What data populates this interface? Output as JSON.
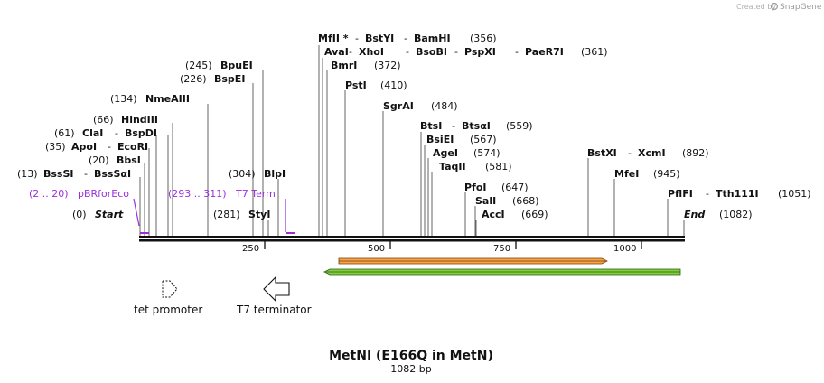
{
  "credit": {
    "prefix": "Created by",
    "brand": "SnapGene"
  },
  "sequence": {
    "title": "MetNI (E166Q in MetN)",
    "length_label": "1082 bp",
    "length": 1082
  },
  "ends": {
    "start": {
      "label": "Start",
      "pos": "(0)"
    },
    "end": {
      "label": "End",
      "pos": "(1082)"
    }
  },
  "ticks": [
    "250",
    "500",
    "750",
    "1000"
  ],
  "primers": [
    {
      "range": "(2 .. 20)",
      "name": "pBRforEco"
    },
    {
      "range": "(293 .. 311)",
      "name": "T7 Term"
    }
  ],
  "sites": [
    {
      "pos": "(13)",
      "names": [
        "BssSI",
        "BssSαI"
      ]
    },
    {
      "pos": "(20)",
      "names": [
        "BbsI"
      ]
    },
    {
      "pos": "(35)",
      "names": [
        "ApoI",
        "EcoRI"
      ]
    },
    {
      "pos": "(61)",
      "names": [
        "ClaI",
        "BspDI"
      ]
    },
    {
      "pos": "(66)",
      "names": [
        "HindIII"
      ]
    },
    {
      "pos": "(134)",
      "names": [
        "NmeAIII"
      ]
    },
    {
      "pos": "(226)",
      "names": [
        "BspEI"
      ]
    },
    {
      "pos": "(245)",
      "names": [
        "BpuEI"
      ]
    },
    {
      "pos": "(281)",
      "names": [
        "StyI"
      ]
    },
    {
      "pos": "(304)",
      "names": [
        "BlpI"
      ]
    },
    {
      "pos": "(356)",
      "names": [
        "MfII *",
        "BstYI",
        "BamHI"
      ]
    },
    {
      "pos": "(361)",
      "names": [
        "AvaI",
        "XhoI",
        "BsoBI",
        "PspXI",
        "PaeR7I"
      ]
    },
    {
      "pos": "(372)",
      "names": [
        "BmrI"
      ]
    },
    {
      "pos": "(410)",
      "names": [
        "PstI"
      ]
    },
    {
      "pos": "(484)",
      "names": [
        "SgrAI"
      ]
    },
    {
      "pos": "(559)",
      "names": [
        "BtsI",
        "BtsαI"
      ]
    },
    {
      "pos": "(567)",
      "names": [
        "BsiEI"
      ]
    },
    {
      "pos": "(574)",
      "names": [
        "AgeI"
      ]
    },
    {
      "pos": "(581)",
      "names": [
        "TaqII"
      ]
    },
    {
      "pos": "(647)",
      "names": [
        "PfoI"
      ]
    },
    {
      "pos": "(668)",
      "names": [
        "SalI"
      ]
    },
    {
      "pos": "(669)",
      "names": [
        "AccI"
      ]
    },
    {
      "pos": "(892)",
      "names": [
        "BstXI",
        "XcmI"
      ]
    },
    {
      "pos": "(945)",
      "names": [
        "MfeI"
      ]
    },
    {
      "pos": "(1051)",
      "names": [
        "PflFI",
        "Tth111I"
      ]
    }
  ],
  "features": [
    {
      "name": "tet promoter",
      "icon": "promoter-arrow-icon"
    },
    {
      "name": "T7 terminator",
      "icon": "terminator-arrow-icon"
    }
  ],
  "colors": {
    "purple": "#9b30d9",
    "orange_fill": "#f6a44a",
    "orange_edge": "#7a3b00",
    "green_fill": "#7fd13b",
    "green_edge": "#2d5a12"
  }
}
